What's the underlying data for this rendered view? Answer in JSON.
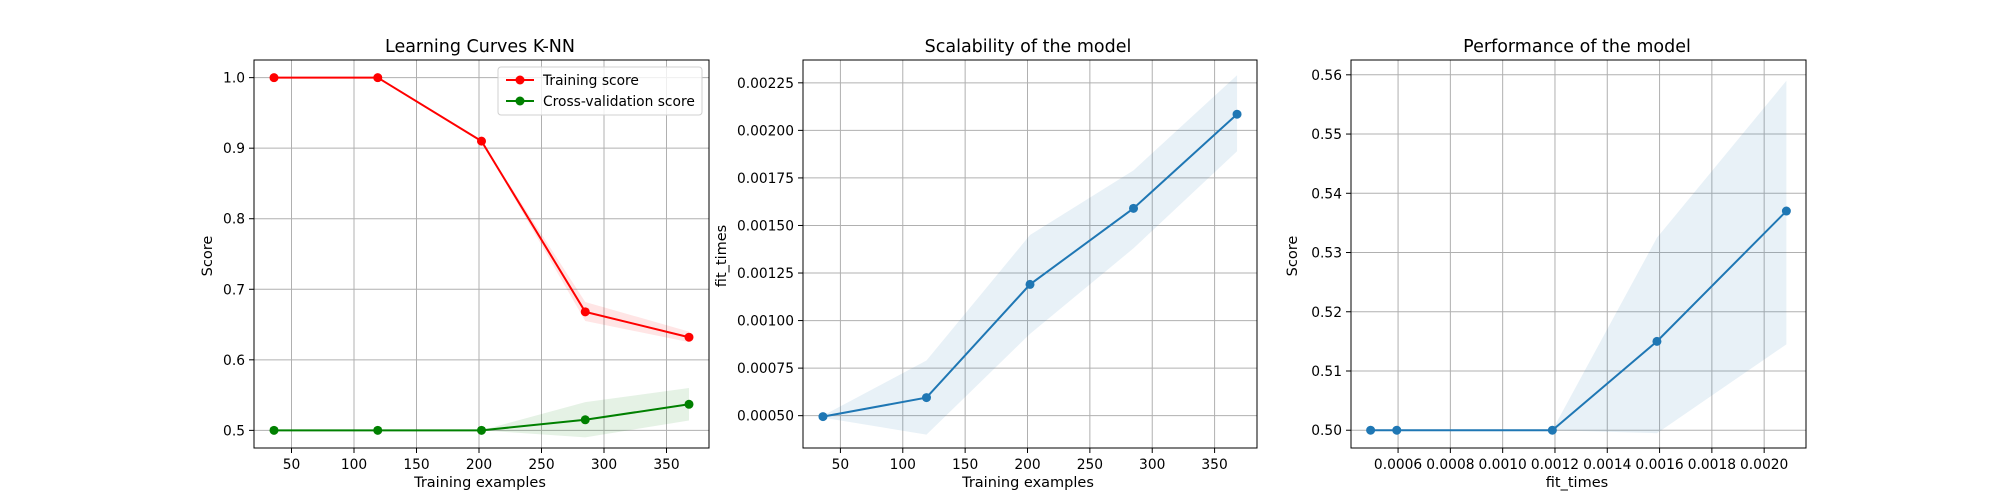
{
  "chart_data": [
    {
      "type": "line",
      "title": "Learning Curves K-NN",
      "xlabel": "Training examples",
      "ylabel": "Score",
      "xlim": [
        20,
        384
      ],
      "ylim": [
        0.475,
        1.025
      ],
      "xticks": [
        50,
        100,
        150,
        200,
        250,
        300,
        350
      ],
      "xtick_labels": [
        "50",
        "100",
        "150",
        "200",
        "250",
        "300",
        "350"
      ],
      "yticks": [
        0.5,
        0.6,
        0.7,
        0.8,
        0.9,
        1.0
      ],
      "ytick_labels": [
        "0.5",
        "0.6",
        "0.7",
        "0.8",
        "0.9",
        "1.0"
      ],
      "grid": true,
      "legend": "upper right",
      "series": [
        {
          "name": "Training score",
          "color": "#ff0000",
          "x": [
            36,
            119,
            202,
            285,
            368
          ],
          "y": [
            1.0,
            1.0,
            0.91,
            0.668,
            0.632
          ],
          "band_low": [
            1.0,
            1.0,
            0.91,
            0.655,
            0.625
          ],
          "band_high": [
            1.0,
            1.0,
            0.91,
            0.682,
            0.64
          ]
        },
        {
          "name": "Cross-validation score",
          "color": "#008000",
          "x": [
            36,
            119,
            202,
            285,
            368
          ],
          "y": [
            0.5,
            0.5,
            0.5,
            0.515,
            0.537
          ],
          "band_low": [
            0.5,
            0.5,
            0.5,
            0.49,
            0.514
          ],
          "band_high": [
            0.5,
            0.5,
            0.5,
            0.54,
            0.56
          ]
        }
      ]
    },
    {
      "type": "line",
      "title": "Scalability of the model",
      "xlabel": "Training examples",
      "ylabel": "fit_times",
      "xlim": [
        20,
        384
      ],
      "ylim": [
        0.00033,
        0.00237
      ],
      "xticks": [
        50,
        100,
        150,
        200,
        250,
        300,
        350
      ],
      "xtick_labels": [
        "50",
        "100",
        "150",
        "200",
        "250",
        "300",
        "350"
      ],
      "yticks": [
        0.0005,
        0.00075,
        0.001,
        0.00125,
        0.0015,
        0.00175,
        0.002,
        0.00225
      ],
      "ytick_labels": [
        "0.00050",
        "0.00075",
        "0.00100",
        "0.00125",
        "0.00150",
        "0.00175",
        "0.00200",
        "0.00225"
      ],
      "grid": true,
      "series": [
        {
          "color": "#1f77b4",
          "x": [
            36,
            119,
            202,
            285,
            368
          ],
          "y": [
            0.000495,
            0.000595,
            0.00119,
            0.00159,
            0.002085
          ],
          "band_low": [
            0.00049,
            0.0004,
            0.00093,
            0.00138,
            0.00189
          ],
          "band_high": [
            0.0005,
            0.00079,
            0.00145,
            0.00179,
            0.00229
          ]
        }
      ]
    },
    {
      "type": "line",
      "title": "Performance of the model",
      "xlabel": "fit_times",
      "ylabel": "Score",
      "xlim": [
        0.00042,
        0.00216
      ],
      "ylim": [
        0.497,
        0.5625
      ],
      "xticks": [
        0.0006,
        0.0008,
        0.001,
        0.0012,
        0.0014,
        0.0016,
        0.0018,
        0.002
      ],
      "xtick_labels": [
        "0.0006",
        "0.0008",
        "0.0010",
        "0.0012",
        "0.0014",
        "0.0016",
        "0.0018",
        "0.0020"
      ],
      "yticks": [
        0.5,
        0.51,
        0.52,
        0.53,
        0.54,
        0.55,
        0.56
      ],
      "ytick_labels": [
        "0.50",
        "0.51",
        "0.52",
        "0.53",
        "0.54",
        "0.55",
        "0.56"
      ],
      "grid": true,
      "series": [
        {
          "color": "#1f77b4",
          "x": [
            0.000495,
            0.000595,
            0.00119,
            0.00159,
            0.002085
          ],
          "y": [
            0.5,
            0.5,
            0.5,
            0.515,
            0.537
          ],
          "band_low": [
            0.5,
            0.5,
            0.5,
            0.4995,
            0.5145
          ],
          "band_high": [
            0.5,
            0.5,
            0.5,
            0.5325,
            0.559
          ]
        }
      ]
    }
  ]
}
